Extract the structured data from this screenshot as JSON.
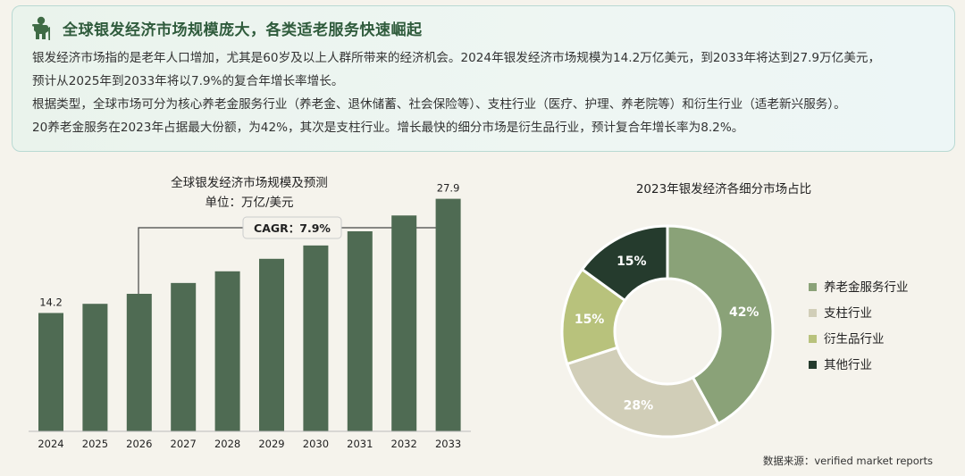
{
  "header": {
    "title": "全球银发经济市场规模庞大，各类适老服务快速崛起",
    "paragraphs": [
      "银发经济市场指的是老年人口增加，尤其是60岁及以上人群所带来的经济机会。2024年银发经济市场规模为14.2万亿美元，到2033年将达到27.9万亿美元，",
      "预计从2025年到2033年将以7.9%的复合年增长率增长。",
      "根据类型，全球市场可分为核心养老金服务行业（养老金、退休储蓄、社会保险等）、支柱行业（医疗、护理、养老院等）和衍生行业（适老新兴服务）。",
      "20养老金服务在2023年占据最大份额，为42%，其次是支柱行业。增长最快的细分市场是衍生品行业，预计复合年增长率为8.2%。"
    ]
  },
  "chart_data": [
    {
      "type": "bar",
      "title": "全球银发经济市场规模及预测",
      "subtitle": "单位：万亿/美元",
      "categories": [
        "2024",
        "2025",
        "2026",
        "2027",
        "2028",
        "2029",
        "2030",
        "2031",
        "2032",
        "2033"
      ],
      "values": [
        14.2,
        15.3,
        16.5,
        17.8,
        19.2,
        20.7,
        22.3,
        24.0,
        25.9,
        27.9
      ],
      "data_labels": {
        "2024": "14.2",
        "2033": "27.9"
      },
      "annotation": "CAGR：7.9%",
      "ylim": [
        0,
        30
      ],
      "grid": false,
      "colors": {
        "bar": "#4f6b53"
      }
    },
    {
      "type": "pie",
      "donut": true,
      "title": "2023年银发经济各细分市场占比",
      "labels": [
        "养老金服务行业",
        "支柱行业",
        "衍生品行业",
        "其他行业"
      ],
      "values": [
        42,
        28,
        15,
        15
      ],
      "value_labels": [
        "42%",
        "28%",
        "15%",
        "15%"
      ],
      "colors": [
        "#8aa278",
        "#d1ceb8",
        "#b8c27c",
        "#253b2d"
      ],
      "label_colors": [
        "#ffffff",
        "#ffffff",
        "#ffffff",
        "#ffffff"
      ],
      "legend_position": "right"
    }
  ],
  "source": "数据来源：verified market reports"
}
